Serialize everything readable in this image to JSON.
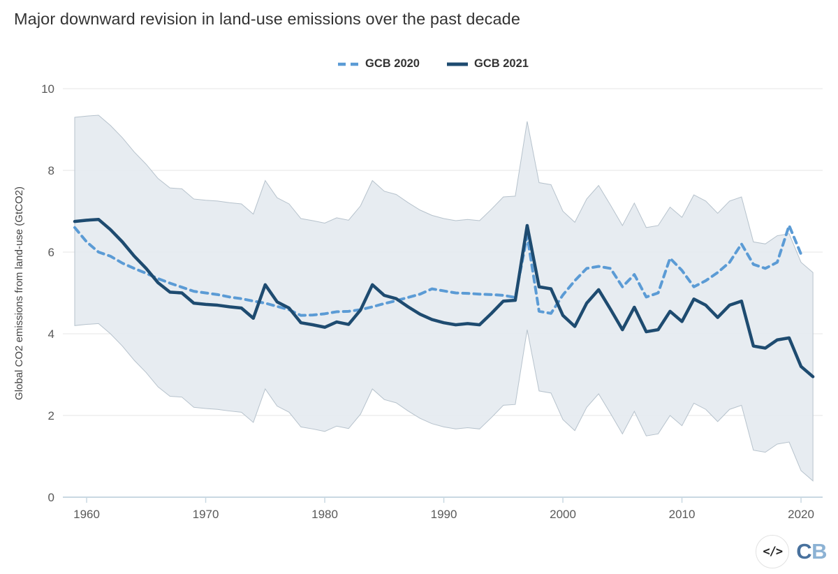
{
  "title": "Major downward revision in land-use emissions over the past decade",
  "legend": [
    {
      "label": "GCB 2020",
      "style": "dashed",
      "color": "#5b9bd5"
    },
    {
      "label": "GCB 2021",
      "style": "solid",
      "color": "#1e4b70"
    }
  ],
  "footer": {
    "code_icon": "</>",
    "logo_c": "C",
    "logo_b": "B"
  },
  "colors": {
    "band_fill": "#e4eaf0",
    "band_edge": "#b6c2cc",
    "gridline": "#e6e6e6",
    "axis": "#c9d8e2",
    "tick_text": "#595959",
    "title_text": "#333333"
  },
  "chart_data": {
    "type": "line",
    "title": "Major downward revision in land-use emissions over the past decade",
    "xlabel": "",
    "ylabel": "Global CO2 emissions from land-use (GtCO2)",
    "xlim": [
      1958.5,
      2021.8
    ],
    "ylim": [
      0,
      10
    ],
    "x_ticks": [
      1960,
      1970,
      1980,
      1990,
      2000,
      2010,
      2020
    ],
    "y_ticks": [
      0,
      2,
      4,
      6,
      8,
      10
    ],
    "grid": "horizontal",
    "legend_position": "top-center",
    "series": [
      {
        "name": "GCB 2020",
        "style": "dashed",
        "color": "#5b9bd5",
        "x_start": 1959,
        "values": [
          6.6,
          6.25,
          6.0,
          5.9,
          5.73,
          5.6,
          5.48,
          5.35,
          5.24,
          5.14,
          5.04,
          5.0,
          4.96,
          4.9,
          4.86,
          4.8,
          4.75,
          4.67,
          4.59,
          4.45,
          4.46,
          4.49,
          4.54,
          4.55,
          4.59,
          4.66,
          4.74,
          4.81,
          4.89,
          4.97,
          5.1,
          5.05,
          5.0,
          4.99,
          4.97,
          4.96,
          4.94,
          4.89,
          6.4,
          4.55,
          4.5,
          4.95,
          5.3,
          5.6,
          5.65,
          5.6,
          5.15,
          5.45,
          4.9,
          5.0,
          5.85,
          5.55,
          5.15,
          5.3,
          5.5,
          5.75,
          6.2,
          5.7,
          5.6,
          5.75,
          6.65,
          5.95
        ]
      },
      {
        "name": "GCB 2021",
        "style": "solid",
        "color": "#1e4b70",
        "x_start": 1959,
        "values": [
          6.75,
          6.78,
          6.8,
          6.55,
          6.25,
          5.9,
          5.6,
          5.25,
          5.02,
          5.0,
          4.75,
          4.72,
          4.7,
          4.66,
          4.63,
          4.38,
          5.2,
          4.78,
          4.63,
          4.27,
          4.22,
          4.16,
          4.29,
          4.23,
          4.58,
          5.2,
          4.94,
          4.86,
          4.66,
          4.48,
          4.35,
          4.27,
          4.22,
          4.25,
          4.22,
          4.5,
          4.8,
          4.82,
          6.65,
          5.15,
          5.1,
          4.45,
          4.18,
          4.75,
          5.08,
          4.6,
          4.1,
          4.65,
          4.05,
          4.1,
          4.55,
          4.3,
          4.85,
          4.7,
          4.4,
          4.7,
          4.8,
          3.7,
          3.65,
          3.85,
          3.9,
          3.2,
          2.95
        ]
      }
    ],
    "band": {
      "name": "GCB 2021 uncertainty range",
      "x_start": 1959,
      "upper": [
        9.3,
        9.33,
        9.35,
        9.1,
        8.8,
        8.45,
        8.15,
        7.8,
        7.57,
        7.55,
        7.3,
        7.27,
        7.25,
        7.21,
        7.18,
        6.93,
        7.75,
        7.33,
        7.18,
        6.82,
        6.77,
        6.71,
        6.84,
        6.78,
        7.13,
        7.75,
        7.49,
        7.41,
        7.21,
        7.03,
        6.9,
        6.82,
        6.77,
        6.8,
        6.77,
        7.05,
        7.35,
        7.37,
        9.2,
        7.7,
        7.65,
        7.0,
        6.73,
        7.3,
        7.63,
        7.15,
        6.65,
        7.2,
        6.6,
        6.65,
        7.1,
        6.85,
        7.4,
        7.25,
        6.95,
        7.25,
        7.35,
        6.25,
        6.2,
        6.4,
        6.45,
        5.75,
        5.5
      ],
      "lower": [
        4.2,
        4.23,
        4.25,
        4.0,
        3.7,
        3.35,
        3.05,
        2.7,
        2.47,
        2.45,
        2.2,
        2.17,
        2.15,
        2.11,
        2.08,
        1.83,
        2.65,
        2.23,
        2.08,
        1.72,
        1.67,
        1.61,
        1.74,
        1.68,
        2.03,
        2.65,
        2.39,
        2.31,
        2.11,
        1.93,
        1.8,
        1.72,
        1.67,
        1.7,
        1.67,
        1.95,
        2.25,
        2.27,
        4.1,
        2.6,
        2.55,
        1.9,
        1.63,
        2.2,
        2.53,
        2.05,
        1.55,
        2.1,
        1.5,
        1.55,
        2.0,
        1.75,
        2.3,
        2.15,
        1.85,
        2.15,
        2.25,
        1.15,
        1.1,
        1.3,
        1.35,
        0.65,
        0.4
      ]
    }
  }
}
